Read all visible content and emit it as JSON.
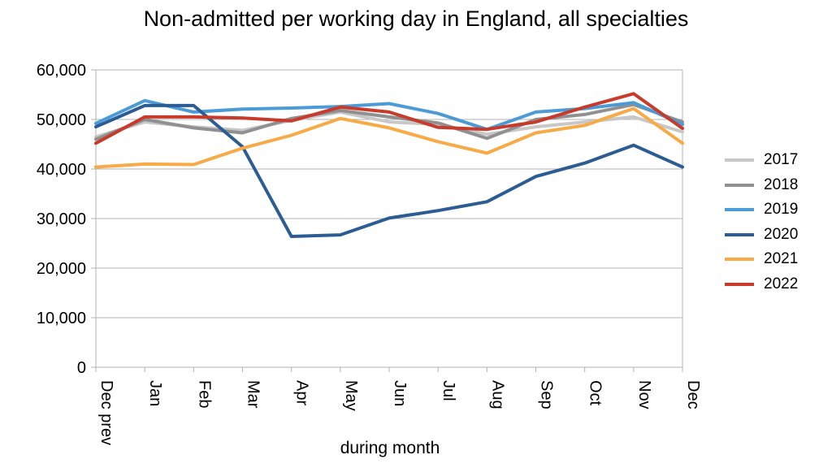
{
  "chart_data": {
    "type": "line",
    "title": "Non-admitted per working day in England, all specialties",
    "xlabel": "during month",
    "ylabel": "",
    "ylim": [
      0,
      60000
    ],
    "yticks": [
      "0",
      "10,000",
      "20,000",
      "30,000",
      "40,000",
      "50,000",
      "60,000"
    ],
    "categories": [
      "Dec prev",
      "Jan",
      "Feb",
      "Mar",
      "Apr",
      "May",
      "Jun",
      "Jul",
      "Aug",
      "Sep",
      "Oct",
      "Nov",
      "Dec"
    ],
    "grid": true,
    "legend_position": "right",
    "series": [
      {
        "name": "2017",
        "color": "#c8c8c8",
        "values": [
          46500,
          49500,
          48500,
          47800,
          49800,
          51500,
          49500,
          49000,
          47000,
          48500,
          49500,
          50500,
          47500
        ]
      },
      {
        "name": "2018",
        "color": "#909090",
        "values": [
          46000,
          50000,
          48300,
          47300,
          50200,
          51800,
          50500,
          49300,
          46200,
          50000,
          51000,
          53000,
          49500
        ]
      },
      {
        "name": "2019",
        "color": "#4b9bd6",
        "values": [
          49200,
          53800,
          51500,
          52100,
          52300,
          52600,
          53200,
          51200,
          48000,
          51500,
          52200,
          53400,
          49000
        ]
      },
      {
        "name": "2020",
        "color": "#2b5c94",
        "values": [
          48500,
          52800,
          52800,
          44500,
          26400,
          26700,
          30100,
          31600,
          33400,
          38500,
          41200,
          44800,
          40400
        ]
      },
      {
        "name": "2021",
        "color": "#f7aa45",
        "values": [
          40400,
          41000,
          40900,
          44200,
          46800,
          50200,
          48300,
          45500,
          43200,
          47300,
          48800,
          52200,
          45200
        ]
      },
      {
        "name": "2022",
        "color": "#c83a2a",
        "values": [
          45200,
          50500,
          50500,
          50300,
          49700,
          52500,
          51500,
          48400,
          48000,
          49500,
          52500,
          55200,
          48200
        ]
      }
    ]
  }
}
